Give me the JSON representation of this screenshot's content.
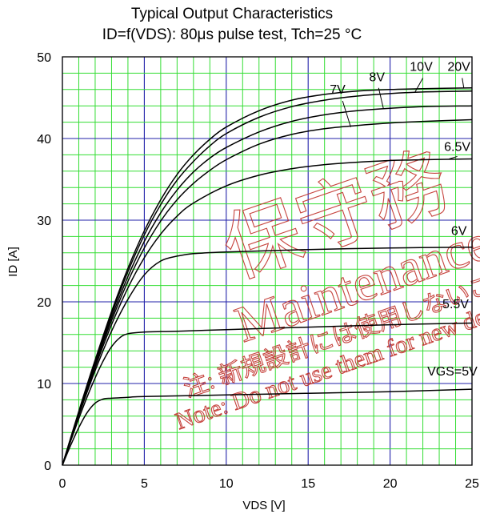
{
  "chart_data": {
    "type": "line",
    "title": "Typical Output Characteristics",
    "subtitle": "ID=f(VDS): 80μs pulse test, Tch=25 °C",
    "xlabel": "VDS [V]",
    "ylabel": "ID [A]",
    "xlim": [
      0,
      25
    ],
    "ylim": [
      0,
      50
    ],
    "x_ticks": [
      "0",
      "5",
      "10",
      "15",
      "20",
      "25"
    ],
    "y_ticks": [
      "0",
      "10",
      "20",
      "30",
      "40",
      "50"
    ],
    "grid": true,
    "minor_grid_color": "#33dd33",
    "major_grid_color": "#2222aa",
    "series": [
      {
        "name": "VGS=5V",
        "label": "VGS=5V",
        "x": [
          0,
          0.5,
          1,
          1.5,
          2,
          2.5,
          3,
          4,
          5,
          10,
          15,
          20,
          25
        ],
        "y": [
          0,
          2.4,
          4.6,
          6.4,
          7.6,
          8.1,
          8.2,
          8.3,
          8.4,
          8.6,
          8.8,
          9.0,
          9.3
        ]
      },
      {
        "name": "5.5V",
        "label": "5.5V",
        "x": [
          0,
          0.5,
          1,
          1.5,
          2,
          2.5,
          3,
          3.5,
          4,
          5,
          7,
          10,
          15,
          20,
          25
        ],
        "y": [
          0,
          2.9,
          5.7,
          8.3,
          10.7,
          12.8,
          14.5,
          15.6,
          16.1,
          16.3,
          16.4,
          16.6,
          16.9,
          17.2,
          17.4
        ]
      },
      {
        "name": "6V",
        "label": "6V",
        "x": [
          0,
          0.5,
          1,
          2,
          3,
          4,
          5,
          6,
          7,
          8,
          10,
          15,
          20,
          25
        ],
        "y": [
          0,
          3.1,
          6.1,
          11.6,
          16.4,
          20.3,
          23.3,
          25.0,
          25.6,
          25.9,
          26.1,
          26.4,
          26.6,
          26.7
        ]
      },
      {
        "name": "6.5V",
        "label": "6.5V",
        "x": [
          0,
          1,
          2,
          3,
          4,
          5,
          6,
          7,
          8,
          10,
          12,
          14,
          16,
          18,
          20,
          22,
          25
        ],
        "y": [
          0,
          6.2,
          12.0,
          17.2,
          21.7,
          25.4,
          28.3,
          30.5,
          32.1,
          34.2,
          35.5,
          36.3,
          36.8,
          37.1,
          37.3,
          37.4,
          37.5
        ]
      },
      {
        "name": "7V",
        "label": "7V",
        "x": [
          0,
          1,
          2,
          3,
          4,
          5,
          6,
          7,
          8,
          9,
          10,
          12,
          14,
          16,
          18,
          20,
          22,
          25
        ],
        "y": [
          0,
          6.3,
          12.3,
          17.7,
          22.5,
          26.6,
          29.9,
          32.5,
          34.5,
          36.1,
          37.4,
          39.3,
          40.5,
          41.2,
          41.6,
          41.9,
          42.1,
          42.3
        ]
      },
      {
        "name": "8V",
        "label": "8V",
        "x": [
          0,
          1,
          2,
          3,
          4,
          5,
          6,
          7,
          8,
          9,
          10,
          12,
          14,
          16,
          18,
          20,
          22,
          25
        ],
        "y": [
          0,
          6.4,
          12.5,
          18.1,
          23.1,
          27.4,
          30.9,
          33.7,
          35.9,
          37.6,
          38.9,
          40.8,
          42.1,
          42.9,
          43.4,
          43.7,
          43.9,
          44.0
        ]
      },
      {
        "name": "10V",
        "label": "10V",
        "x": [
          0,
          1,
          2,
          3,
          4,
          5,
          6,
          7,
          8,
          9,
          10,
          12,
          14,
          16,
          18,
          20,
          22,
          25
        ],
        "y": [
          0,
          6.5,
          12.7,
          18.5,
          23.7,
          28.2,
          31.9,
          34.9,
          37.2,
          39.1,
          40.6,
          42.6,
          43.9,
          44.7,
          45.2,
          45.5,
          45.7,
          45.8
        ]
      },
      {
        "name": "20V",
        "label": "20V",
        "x": [
          0,
          1,
          2,
          3,
          4,
          5,
          6,
          7,
          8,
          9,
          10,
          12,
          14,
          16,
          18,
          20,
          22,
          25
        ],
        "y": [
          0,
          6.6,
          12.9,
          18.8,
          24.1,
          28.7,
          32.5,
          35.6,
          38.0,
          39.9,
          41.4,
          43.4,
          44.7,
          45.4,
          45.8,
          46.0,
          46.1,
          46.2
        ]
      }
    ],
    "curve_labels": [
      {
        "text": "VGS=5V",
        "x": 23.8,
        "y": 11.0
      },
      {
        "text": "5.5V",
        "x": 24.0,
        "y": 19.2
      },
      {
        "text": "6V",
        "x": 24.2,
        "y": 28.2
      },
      {
        "text": "6.5V",
        "x": 24.1,
        "y": 38.5
      },
      {
        "text": "7V",
        "x": 16.8,
        "y": 45.5
      },
      {
        "text": "8V",
        "x": 19.2,
        "y": 47.0
      },
      {
        "text": "10V",
        "x": 21.9,
        "y": 48.3
      },
      {
        "text": "20V",
        "x": 24.2,
        "y": 48.3
      }
    ],
    "watermark": {
      "kanji": "保守務",
      "latin": "Maintenance",
      "note_jp": "注: 新規設計には使用しないこと",
      "note_en": "Note: Do not use them for new design"
    }
  }
}
